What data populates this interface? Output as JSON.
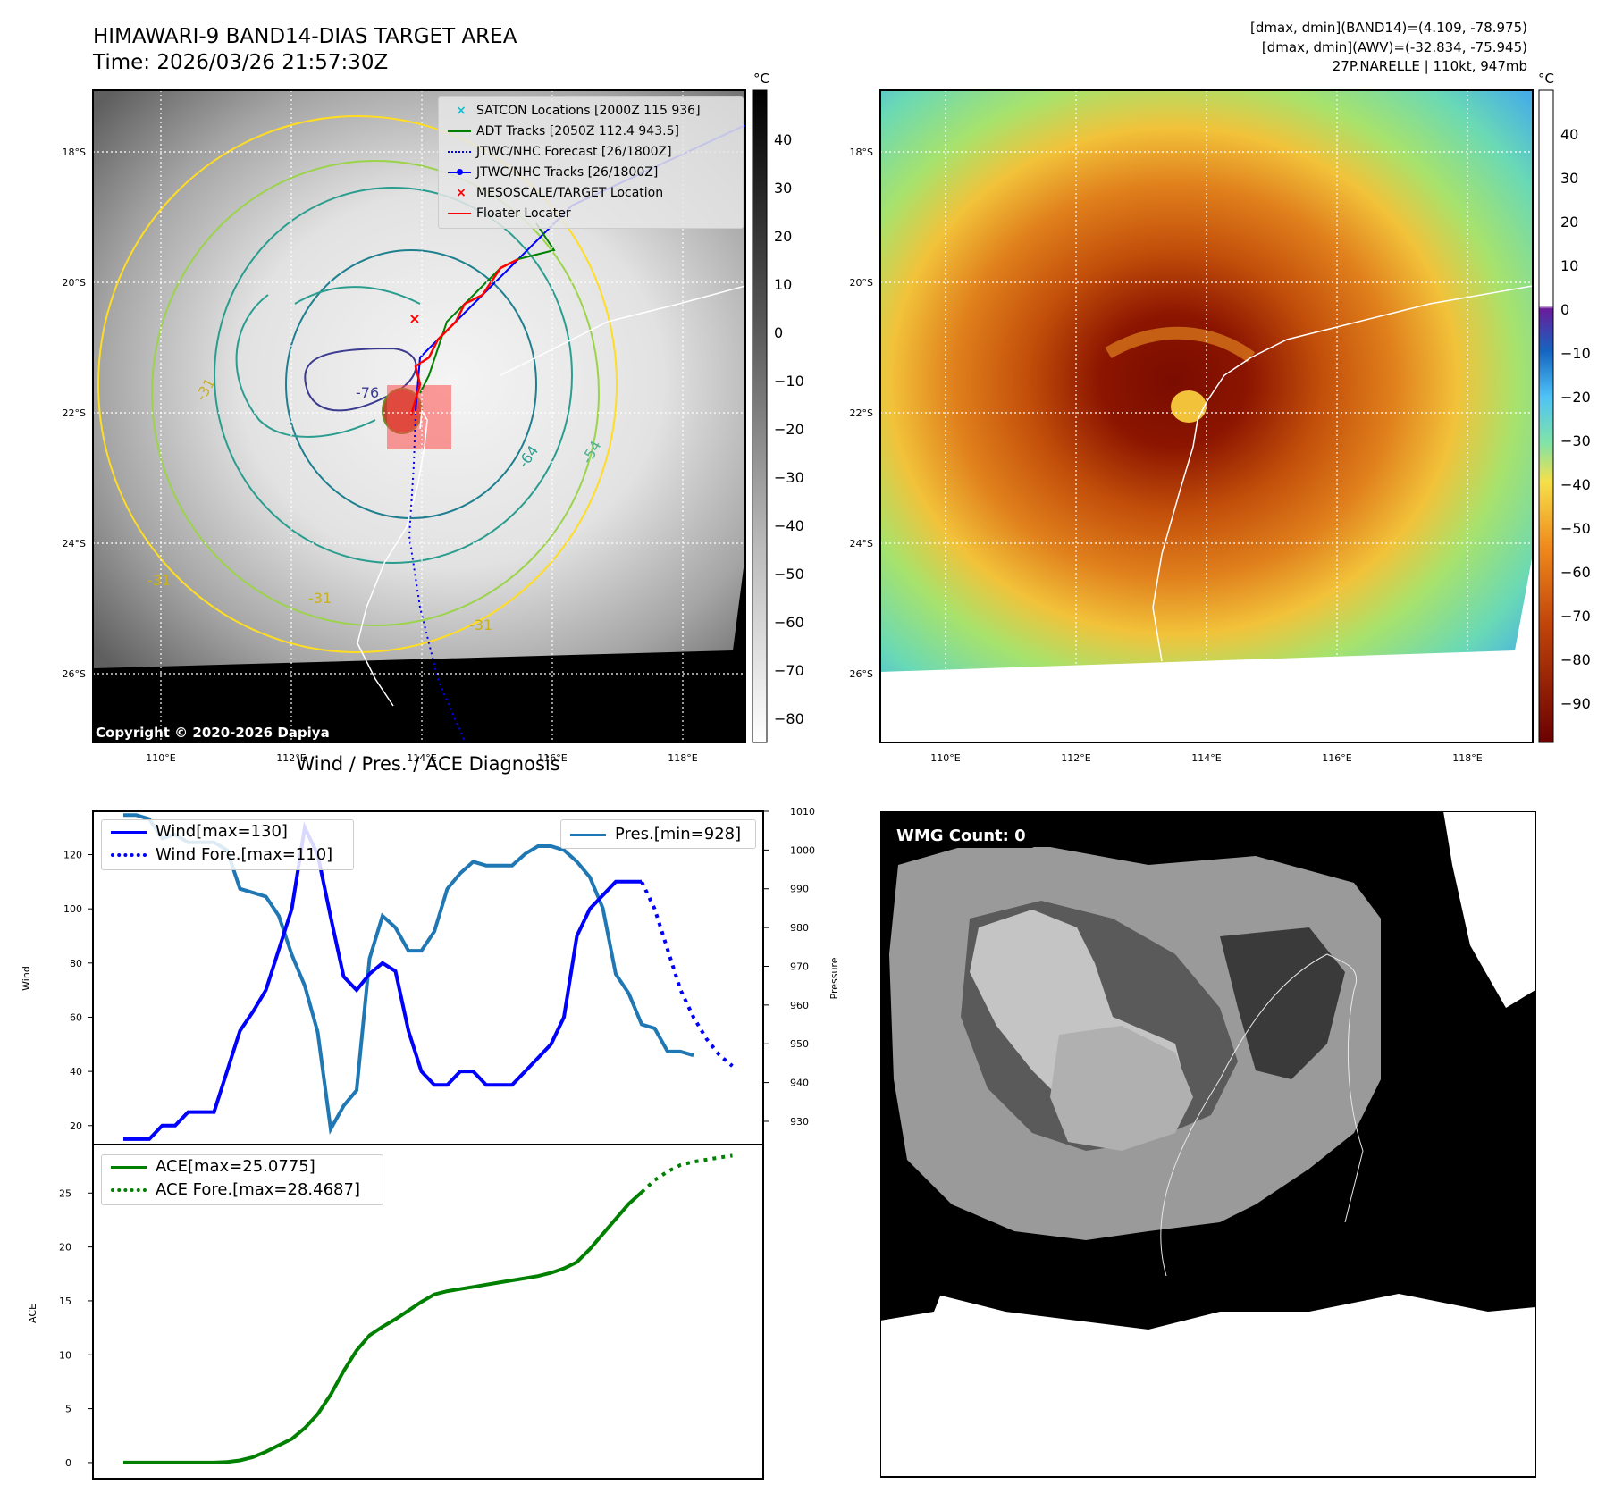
{
  "header": {
    "title_line1": "HIMAWARI-9 BAND14-DIAS TARGET AREA",
    "title_line2": "Time: 2026/03/26 21:57:30Z",
    "info_line1": "[dmax, dmin](BAND14)=(4.109, -78.975)",
    "info_line2": "[dmax, dmin](AWV)=(-32.834, -75.945)",
    "info_line3": "27P.NARELLE | 110kt, 947mb"
  },
  "maps": {
    "lat_labels": [
      "18°S",
      "20°S",
      "22°S",
      "24°S",
      "26°S"
    ],
    "lon_labels": [
      "110°E",
      "112°E",
      "114°E",
      "116°E",
      "118°E"
    ],
    "colorbar_unit": "°C",
    "gray_colorbar_ticks": [
      "40",
      "30",
      "20",
      "10",
      "0",
      "−10",
      "−20",
      "−30",
      "−40",
      "−50",
      "−60",
      "−70",
      "−80"
    ],
    "color_colorbar_ticks": [
      "40",
      "30",
      "20",
      "10",
      "0",
      "−10",
      "−20",
      "−30",
      "−40",
      "−50",
      "−60",
      "−70",
      "−80",
      "−90"
    ],
    "contour_labels": [
      "-76",
      "-64",
      "-54",
      "-31",
      "-31",
      "-31",
      "-31"
    ],
    "copyright": "Copyright © 2020-2026 Dapiya",
    "legend": [
      {
        "label": "SATCON Locations [2000Z 115 936]",
        "color": "#17becf",
        "marker": "x"
      },
      {
        "label": "ADT Tracks [2050Z 112.4 943.5]",
        "color": "#008000",
        "marker": "line"
      },
      {
        "label": "JTWC/NHC Forecast [26/1800Z]",
        "color": "#0000ff",
        "marker": "dotted"
      },
      {
        "label": "JTWC/NHC Tracks [26/1800Z]",
        "color": "#0000ff",
        "marker": "line-dot"
      },
      {
        "label": "MESOSCALE/TARGET Location",
        "color": "#ff0000",
        "marker": "x"
      },
      {
        "label": "Floater Locater",
        "color": "#ff0000",
        "marker": "line"
      }
    ],
    "wmg_count": "WMG Count: 0"
  },
  "chart_data": [
    {
      "type": "line",
      "title": "Wind / Pres. / ACE Diagnosis",
      "ylabel": "Wind",
      "y2label": "Pressure",
      "ylim": [
        13,
        136
      ],
      "y2lim": [
        924,
        1010
      ],
      "yticks": [
        20,
        40,
        60,
        80,
        100,
        120
      ],
      "y2ticks": [
        930,
        940,
        950,
        960,
        970,
        980,
        990,
        1000,
        1010
      ],
      "series": [
        {
          "name": "Wind[max=130]",
          "color": "#0000ff",
          "style": "solid",
          "values": [
            15,
            15,
            15,
            20,
            20,
            25,
            25,
            25,
            40,
            55,
            62,
            70,
            85,
            100,
            130,
            120,
            97,
            75,
            70,
            76,
            80,
            77,
            55,
            40,
            35,
            35,
            40,
            40,
            35,
            35,
            35,
            40,
            45,
            50,
            60,
            90,
            100,
            105,
            110,
            110,
            110
          ]
        },
        {
          "name": "Wind Fore.[max=110]",
          "color": "#0000ff",
          "style": "dotted",
          "values_start": 40,
          "values": [
            110,
            100,
            85,
            70,
            60,
            52,
            46,
            42
          ]
        },
        {
          "name": "Pres.[min=928]",
          "color": "#1f77b4",
          "style": "solid",
          "axis": "right",
          "values": [
            1009,
            1009,
            1008,
            1003,
            1004,
            1002,
            1002,
            1002,
            1000,
            990,
            989,
            988,
            983,
            973,
            965,
            953,
            928,
            934,
            938,
            972,
            983,
            980,
            974,
            974,
            979,
            990,
            994,
            997,
            996,
            996,
            996,
            999,
            1001,
            1001,
            1000,
            997,
            993,
            985,
            968,
            963,
            955,
            954,
            948,
            948,
            947
          ]
        }
      ]
    },
    {
      "type": "line",
      "ylabel": "ACE",
      "ylim": [
        -1.5,
        29.5
      ],
      "yticks": [
        0,
        5,
        10,
        15,
        20,
        25
      ],
      "series": [
        {
          "name": "ACE[max=25.0775]",
          "color": "#008000",
          "style": "solid",
          "values": [
            0,
            0,
            0,
            0,
            0,
            0,
            0,
            0,
            0.05,
            0.2,
            0.5,
            1.0,
            1.6,
            2.2,
            3.2,
            4.5,
            6.3,
            8.5,
            10.4,
            11.8,
            12.6,
            13.3,
            14.1,
            14.9,
            15.6,
            15.9,
            16.1,
            16.3,
            16.5,
            16.7,
            16.9,
            17.1,
            17.3,
            17.6,
            18.0,
            18.6,
            19.8,
            21.2,
            22.6,
            24.0,
            25.08
          ]
        },
        {
          "name": "ACE Fore.[max=28.4687]",
          "color": "#008000",
          "style": "dotted",
          "values_start": 40,
          "values": [
            25.08,
            26.2,
            27.0,
            27.6,
            27.9,
            28.1,
            28.3,
            28.47
          ]
        }
      ]
    }
  ]
}
